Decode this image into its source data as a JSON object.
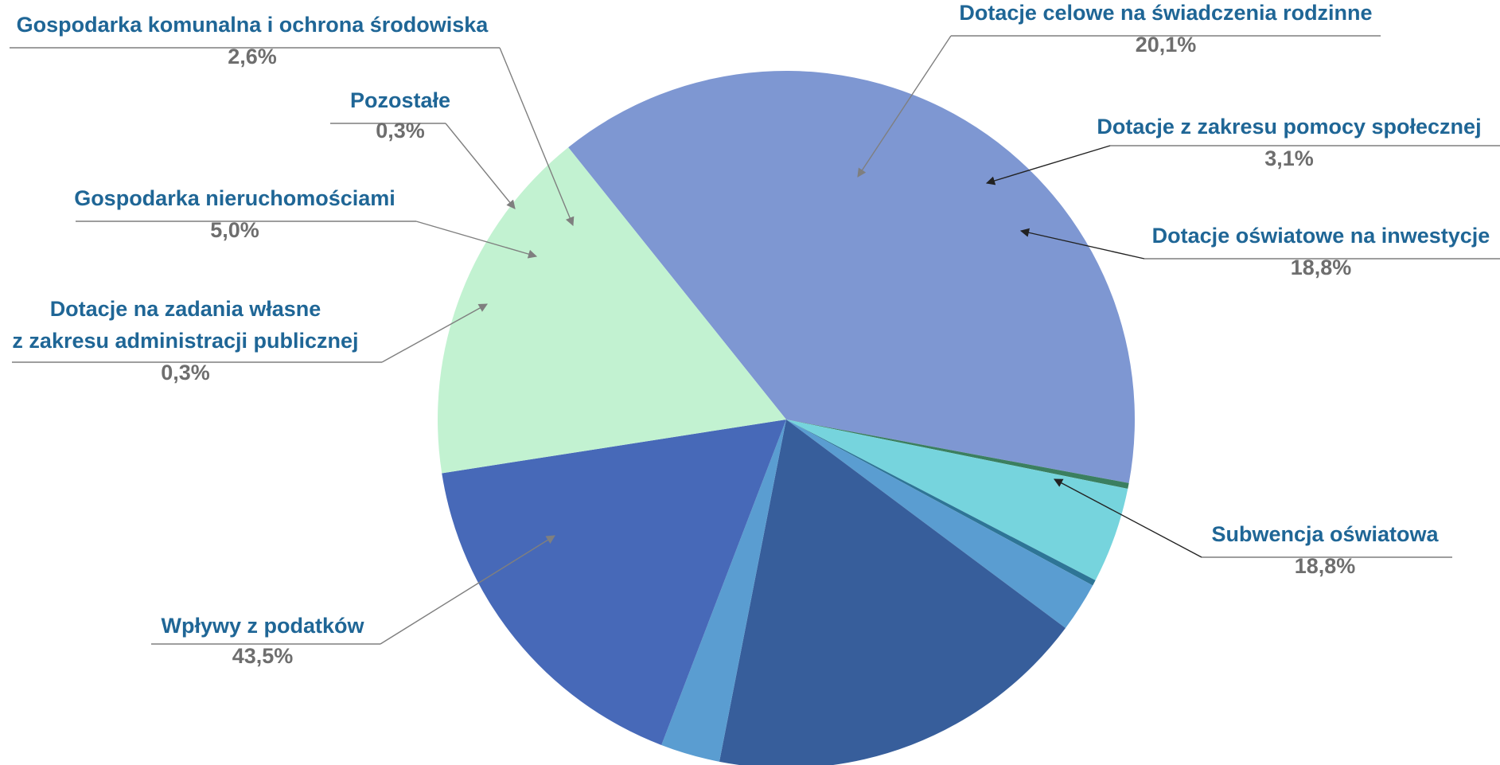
{
  "chart_data": {
    "type": "pie",
    "title": "",
    "slices": [
      {
        "label": "Wpływy z podatków",
        "value": 43.5,
        "value_label": "43,5%",
        "color": "#7e97d2"
      },
      {
        "label_lines": [
          "Dotacje na zadania własne",
          "z zakresu administracji publicznej"
        ],
        "value": 0.3,
        "value_label": "0,3%",
        "color": "#3b7f60"
      },
      {
        "label": "Gospodarka nieruchomościami",
        "value": 5.0,
        "value_label": "5,0%",
        "color": "#76d4dd"
      },
      {
        "label": "Pozostałe",
        "value": 0.3,
        "value_label": "0,3%",
        "color": "#2e7596"
      },
      {
        "label": "Gospodarka komunalna i ochrona środowiska",
        "value": 2.6,
        "value_label": "2,6%",
        "color": "#5a9dd1"
      },
      {
        "label": "Dotacje celowe na świadczenia rodzinne",
        "value": 20.1,
        "value_label": "20,1%",
        "color": "#375e9b"
      },
      {
        "label": "Dotacje z zakresu pomocy społecznej",
        "value": 3.1,
        "value_label": "3,1%",
        "color": "#5a9dd1"
      },
      {
        "label": "Dotacje oświatowe na inwestycje",
        "value": 18.8,
        "value_label": "18,8%",
        "color": "#4769b8"
      },
      {
        "label": "Subwencja oświatowa",
        "value": 18.8,
        "value_label": "18,8%",
        "color": "#c2f2d1"
      }
    ],
    "legend": "none (labels with leader lines)"
  }
}
